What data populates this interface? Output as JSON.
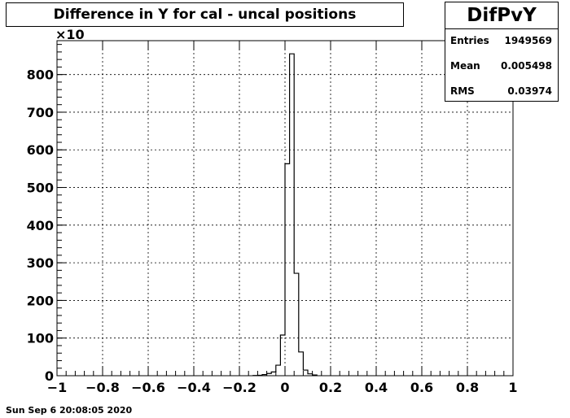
{
  "chart_data": {
    "type": "bar",
    "title": "Difference in Y for cal - uncal positions",
    "histogram_name": "DifPvY",
    "stats": [
      {
        "label": "Entries",
        "value": "1949569"
      },
      {
        "label": "Mean",
        "value": "0.005498"
      },
      {
        "label": "RMS",
        "value": "0.03974"
      }
    ],
    "y_multiplier": "×10",
    "xlim": [
      -1,
      1
    ],
    "ylim": [
      0,
      890
    ],
    "x_ticks": [
      -1,
      -0.8,
      -0.6,
      -0.4,
      -0.2,
      0,
      0.2,
      0.4,
      0.6,
      0.8,
      1
    ],
    "x_tick_labels": [
      "−1",
      "−0.8",
      "−0.6",
      "−0.4",
      "−0.2",
      "0",
      "0.2",
      "0.4",
      "0.6",
      "0.8",
      "1"
    ],
    "y_ticks": [
      0,
      100,
      200,
      300,
      400,
      500,
      600,
      700,
      800
    ],
    "y_tick_labels": [
      "0",
      "100",
      "200",
      "300",
      "400",
      "500",
      "600",
      "700",
      "800"
    ],
    "bin_edges": [
      -0.14,
      -0.12,
      -0.1,
      -0.08,
      -0.06,
      -0.04,
      -0.02,
      0.0,
      0.02,
      0.04,
      0.06,
      0.08,
      0.1,
      0.12,
      0.14
    ],
    "bin_values": [
      0.5,
      1,
      3,
      6,
      10,
      28,
      108,
      563,
      855,
      272,
      63,
      15,
      5,
      2
    ],
    "grid": true,
    "xlabel": "",
    "ylabel": ""
  },
  "timestamp": "Sun Sep  6 20:08:05 2020"
}
